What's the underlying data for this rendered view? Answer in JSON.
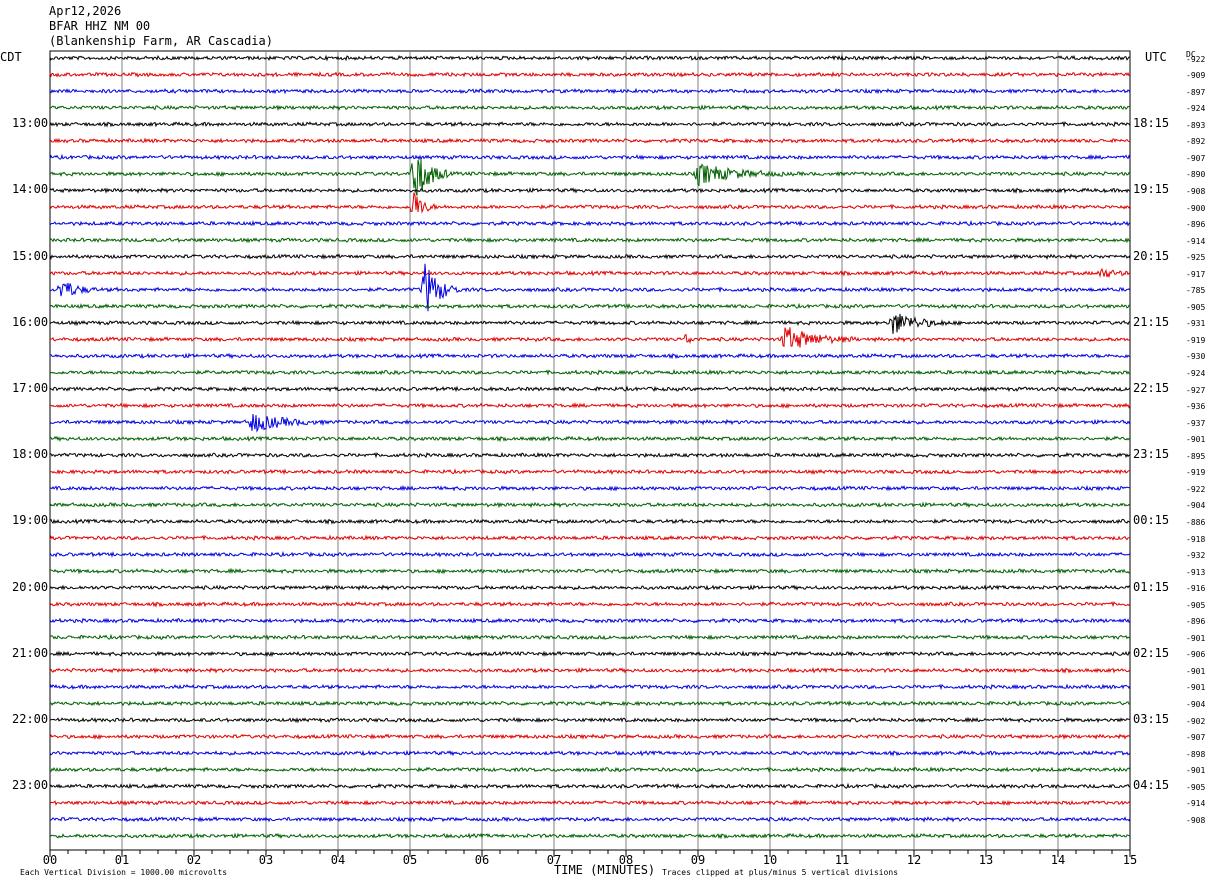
{
  "header": {
    "date": "Apr12,2026",
    "station": "BFAR HHZ NM 00",
    "location": "(Blankenship Farm, AR Cascadia)"
  },
  "left_tz": "CDT",
  "right_tz": "UTC",
  "dc_header": "DC",
  "footer": {
    "left": "Each Vertical Division = 1000.00 microvolts",
    "xlabel": "TIME (MINUTES)",
    "right": "Traces clipped at plus/minus 5 vertical divisions"
  },
  "colors": {
    "trace_cycle": [
      "#000000",
      "#e00000",
      "#0000e0",
      "#006000"
    ],
    "grid": "#808080"
  },
  "chart_data": {
    "type": "line",
    "title": "BFAR HHZ NM 00",
    "xlabel": "TIME (MINUTES)",
    "xlim": [
      0,
      15
    ],
    "x_ticks": [
      "00",
      "01",
      "02",
      "03",
      "04",
      "05",
      "06",
      "07",
      "08",
      "09",
      "10",
      "11",
      "12",
      "13",
      "14",
      "15"
    ],
    "left_hour_labels": [
      "13:00",
      "14:00",
      "15:00",
      "16:00",
      "17:00",
      "18:00",
      "19:00",
      "20:00",
      "21:00",
      "22:00",
      "23:00"
    ],
    "right_hour_labels": [
      "18:15",
      "19:15",
      "20:15",
      "21:15",
      "22:15",
      "23:15",
      "00:15",
      "01:15",
      "02:15",
      "03:15",
      "04:15"
    ],
    "dc_offsets": [
      "-922",
      "-909",
      "-897",
      "-924",
      "-893",
      "-892",
      "-907",
      "-890",
      "-908",
      "-900",
      "-896",
      "-914",
      "-925",
      "-917",
      "-785",
      "-905",
      "-931",
      "-919",
      "-930",
      "-924",
      "-927",
      "-936",
      "-937",
      "-901",
      "-895",
      "-919",
      "-922",
      "-904",
      "-886",
      "-918",
      "-932",
      "-913",
      "-916",
      "-905",
      "-896",
      "-901",
      "-906",
      "-901",
      "-901",
      "-904",
      "-902",
      "-907",
      "-898",
      "-901",
      "-905",
      "-914",
      "-908"
    ],
    "traces_count": 48,
    "events": [
      {
        "trace": 7,
        "minute": 5.05,
        "amplitude": 4.0,
        "duration": 0.5
      },
      {
        "trace": 9,
        "minute": 5.05,
        "amplitude": 2.2,
        "duration": 0.3
      },
      {
        "trace": 7,
        "minute": 9.0,
        "amplitude": 1.3,
        "duration": 1.2
      },
      {
        "trace": 14,
        "minute": 0.15,
        "amplitude": 1.4,
        "duration": 0.5
      },
      {
        "trace": 14,
        "minute": 5.2,
        "amplitude": 3.5,
        "duration": 0.5
      },
      {
        "trace": 13,
        "minute": 14.6,
        "amplitude": 0.6,
        "duration": 0.4
      },
      {
        "trace": 16,
        "minute": 11.7,
        "amplitude": 1.5,
        "duration": 0.8
      },
      {
        "trace": 17,
        "minute": 10.2,
        "amplitude": 1.6,
        "duration": 1.0
      },
      {
        "trace": 17,
        "minute": 8.85,
        "amplitude": 1.0,
        "duration": 0.1
      },
      {
        "trace": 22,
        "minute": 2.8,
        "amplitude": 1.2,
        "duration": 1.0
      }
    ]
  }
}
